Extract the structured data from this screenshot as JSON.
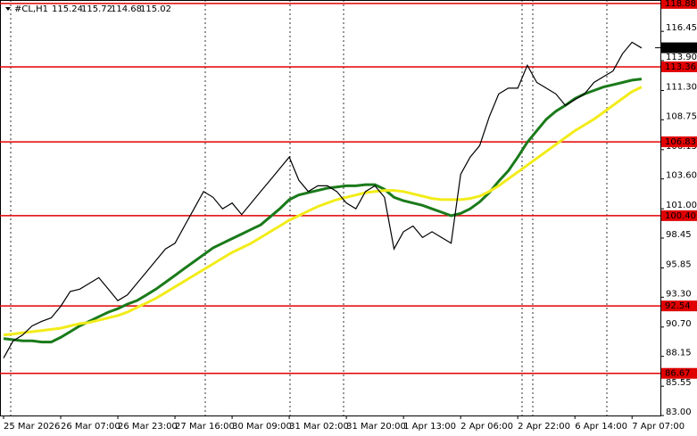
{
  "chart_data": {
    "type": "line",
    "symbol": "#CL,H1",
    "ohlc": [
      115.24,
      115.72,
      114.68,
      115.02
    ],
    "last_price": 115.02,
    "categories": [
      "25 Mar 2026",
      null,
      null,
      null,
      null,
      null,
      "26 Mar 07:00",
      null,
      null,
      null,
      null,
      null,
      "26 Mar 23:00",
      null,
      null,
      null,
      null,
      null,
      "27 Mar 16:00",
      null,
      null,
      null,
      null,
      null,
      "30 Mar 09:00",
      null,
      null,
      null,
      null,
      null,
      "31 Mar 02:00",
      null,
      null,
      null,
      null,
      null,
      "31 Mar 20:00",
      null,
      null,
      null,
      null,
      null,
      "1 Apr 13:00",
      null,
      null,
      null,
      null,
      null,
      "2 Apr 06:00",
      null,
      null,
      null,
      null,
      null,
      "2 Apr 22:00",
      null,
      null,
      null,
      null,
      null,
      "6 Apr 14:00",
      null,
      null,
      null,
      null,
      null,
      "7 Apr 07:00",
      null
    ],
    "series": [
      {
        "color": "#000000",
        "values": [
          88.0,
          89.5,
          90.0,
          90.8,
          91.2,
          91.5,
          92.5,
          93.8,
          94.0,
          94.5,
          95.0,
          94.0,
          93.0,
          93.5,
          94.5,
          95.5,
          96.5,
          97.5,
          98.0,
          99.5,
          101.0,
          102.5,
          102.0,
          101.0,
          101.5,
          100.5,
          101.5,
          102.5,
          103.5,
          104.5,
          105.5,
          103.5,
          102.5,
          103.0,
          103.0,
          102.5,
          101.5,
          101.0,
          102.5,
          103.0,
          102.0,
          97.5,
          99.0,
          99.5,
          98.5,
          99.0,
          98.5,
          98.0,
          104.0,
          105.5,
          106.5,
          109.0,
          111.0,
          111.5,
          111.5,
          113.5,
          112.0,
          111.5,
          111.0,
          110.0,
          110.5,
          111.0,
          112.0,
          112.5,
          113.0,
          114.5,
          115.5,
          115.0
        ]
      },
      {
        "color": "#1a7a1a",
        "values": [
          89.7,
          89.6,
          89.5,
          89.5,
          89.4,
          89.4,
          89.8,
          90.3,
          90.8,
          91.2,
          91.6,
          92.0,
          92.3,
          92.7,
          93.0,
          93.5,
          94.0,
          94.6,
          95.2,
          95.8,
          96.4,
          97.0,
          97.6,
          98.0,
          98.4,
          98.8,
          99.2,
          99.6,
          100.3,
          101.0,
          101.8,
          102.2,
          102.4,
          102.6,
          102.8,
          102.9,
          103.0,
          103.0,
          103.1,
          103.1,
          102.7,
          102.0,
          101.7,
          101.5,
          101.3,
          101.0,
          100.7,
          100.4,
          100.6,
          101.0,
          101.6,
          102.4,
          103.4,
          104.3,
          105.5,
          106.8,
          107.8,
          108.8,
          109.5,
          110.0,
          110.6,
          111.0,
          111.3,
          111.6,
          111.8,
          112.0,
          112.2,
          112.3
        ]
      },
      {
        "color": "#f2ec1a",
        "values": [
          90.0,
          90.1,
          90.2,
          90.3,
          90.4,
          90.5,
          90.6,
          90.8,
          91.0,
          91.1,
          91.3,
          91.5,
          91.7,
          92.0,
          92.4,
          92.8,
          93.2,
          93.7,
          94.2,
          94.7,
          95.2,
          95.7,
          96.2,
          96.7,
          97.2,
          97.6,
          98.0,
          98.5,
          99.0,
          99.5,
          100.0,
          100.4,
          100.8,
          101.2,
          101.5,
          101.8,
          102.0,
          102.2,
          102.4,
          102.5,
          102.6,
          102.6,
          102.5,
          102.3,
          102.1,
          101.9,
          101.8,
          101.8,
          101.8,
          101.9,
          102.1,
          102.5,
          103.0,
          103.6,
          104.2,
          104.8,
          105.4,
          106.0,
          106.6,
          107.2,
          107.8,
          108.3,
          108.8,
          109.4,
          110.0,
          110.6,
          111.2,
          111.6
        ]
      }
    ],
    "levels": [
      118.88,
      113.36,
      106.83,
      {
        "value": 100.4,
        "label": "100.40"
      },
      92.54,
      86.67
    ],
    "level_color": "#e00000",
    "ylim": [
      83.0,
      119.18
    ],
    "yticks": [
      {
        "value": 83.0,
        "label": "83.00"
      },
      85.55,
      88.15,
      {
        "value": 90.7,
        "label": "90.70"
      },
      {
        "value": 93.3,
        "label": "93.30"
      },
      95.85,
      98.45,
      {
        "value": 101.0,
        "label": "101.00"
      },
      {
        "value": 103.6,
        "label": "103.60"
      },
      106.15,
      108.75,
      {
        "value": 111.3,
        "label": "111.30"
      },
      {
        "value": 113.9,
        "label": "113.90"
      },
      116.45
    ]
  }
}
